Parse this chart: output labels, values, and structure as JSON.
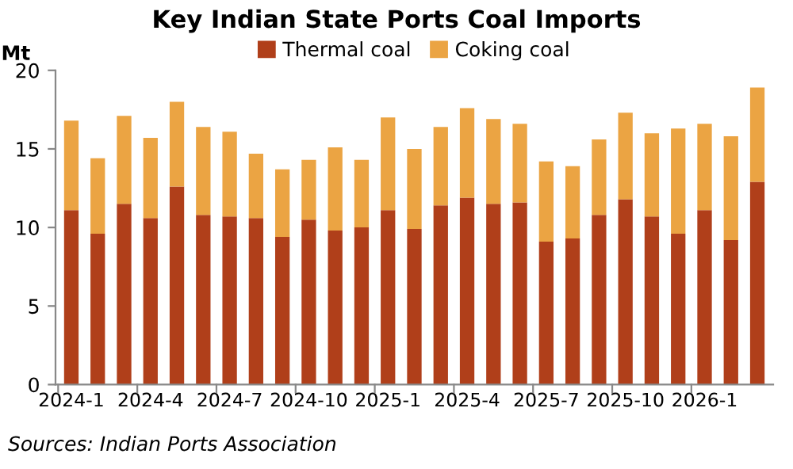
{
  "chart_data": {
    "type": "bar",
    "title": "Key Indian State Ports Coal Imports",
    "ylabel": "Mt",
    "stacked": true,
    "legend": "top",
    "grid": false,
    "categories": [
      "2024-1",
      null,
      null,
      "2024-4",
      null,
      null,
      "2024-7",
      null,
      null,
      "2024-10",
      null,
      null,
      "2025-1",
      null,
      null,
      "2025-4",
      null,
      null,
      "2025-7",
      null,
      null,
      "2025-10",
      null,
      null,
      "2026-1",
      null,
      null
    ],
    "series": [
      {
        "name": "Thermal coal",
        "color": "#b03f1a",
        "values": [
          11.1,
          9.6,
          11.5,
          10.6,
          12.6,
          10.8,
          10.7,
          10.6,
          9.4,
          10.5,
          9.8,
          10.0,
          11.1,
          9.9,
          11.4,
          11.9,
          11.5,
          11.6,
          9.1,
          9.3,
          10.8,
          11.8,
          10.7,
          9.6,
          11.1,
          9.2,
          12.9
        ]
      },
      {
        "name": "Coking coal",
        "color": "#eba443",
        "values": [
          5.7,
          4.8,
          5.6,
          5.1,
          5.4,
          5.6,
          5.4,
          4.1,
          4.3,
          3.8,
          5.3,
          4.3,
          5.9,
          5.1,
          5.0,
          5.7,
          5.4,
          5.0,
          5.1,
          4.6,
          4.8,
          5.5,
          5.3,
          6.7,
          5.5,
          6.6,
          6.0
        ]
      }
    ],
    "ylim": [
      0,
      20
    ],
    "yticks": [
      0,
      5,
      10,
      15,
      20
    ],
    "annotations": [
      "Sources: Indian Ports Association"
    ]
  }
}
